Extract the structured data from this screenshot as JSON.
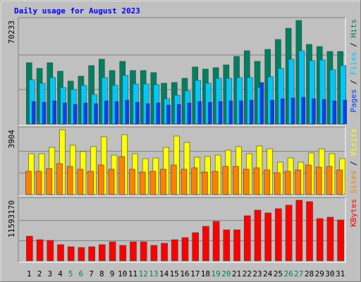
{
  "title": "Daily usage for August 2023",
  "chart_data": [
    {
      "type": "bar",
      "legend_separator": " / ",
      "ylim": [
        0,
        70233
      ],
      "yticks": [
        70233
      ],
      "series": [
        {
          "name": "Pages",
          "color": "#0040ff",
          "values": [
            15289,
            14811,
            15767,
            14333,
            13378,
            14333,
            13856,
            15767,
            15289,
            16244,
            14811,
            13856,
            14333,
            12900,
            13378,
            14333,
            15289,
            14811,
            15289,
            15767,
            15767,
            16244,
            28189,
            16244,
            17200,
            17678,
            18156,
            17200,
            16722,
            15767,
            16244
          ]
        },
        {
          "name": "Files",
          "color": "#00c8f8",
          "values": [
            30100,
            27711,
            31533,
            24844,
            23411,
            26278,
            20067,
            31533,
            26278,
            32967,
            27233,
            27233,
            26756,
            17200,
            19589,
            22456,
            29622,
            27711,
            31056,
            31056,
            31533,
            31533,
            24844,
            32011,
            37744,
            43956,
            49689,
            43000,
            43478,
            36789,
            39656
          ]
        },
        {
          "name": "Hits",
          "color": "#008060",
          "values": [
            41567,
            37744,
            41567,
            35833,
            29145,
            32489,
            39656,
            43956,
            36311,
            42522,
            36311,
            36311,
            34878,
            27711,
            28189,
            31056,
            38700,
            37267,
            38222,
            40133,
            45867,
            49689,
            42522,
            50644,
            57333,
            64978,
            70233,
            53989,
            52555,
            49211,
            49211
          ]
        }
      ]
    },
    {
      "type": "bar",
      "legend_separator": " / ",
      "ylim": [
        0,
        3904
      ],
      "yticks": [
        3904
      ],
      "series": [
        {
          "name": "Sites",
          "color": "#ff8000",
          "values": [
            1400,
            1400,
            1570,
            1867,
            1697,
            1528,
            1400,
            1782,
            1528,
            2291,
            1528,
            1358,
            1400,
            1528,
            1782,
            1528,
            1613,
            1358,
            1400,
            1697,
            1697,
            1528,
            1613,
            1485,
            1315,
            1400,
            1485,
            1782,
            1655,
            1697,
            1485
          ]
        },
        {
          "name": "Visits",
          "color": "#ffff00",
          "values": [
            2461,
            2461,
            2843,
            3904,
            2970,
            2589,
            2886,
            3480,
            2376,
            3607,
            2461,
            2164,
            2207,
            2843,
            3522,
            3140,
            2249,
            2291,
            2376,
            2673,
            2886,
            2461,
            2928,
            2758,
            1952,
            2207,
            1952,
            2504,
            2758,
            2461,
            2164
          ]
        }
      ]
    },
    {
      "type": "bar",
      "ylim": [
        0,
        11593170
      ],
      "yticks": [
        11593170
      ],
      "categories": [
        1,
        2,
        3,
        4,
        5,
        6,
        7,
        8,
        9,
        10,
        11,
        12,
        13,
        14,
        15,
        16,
        17,
        18,
        19,
        20,
        21,
        22,
        23,
        24,
        25,
        26,
        27,
        28,
        29,
        30,
        31
      ],
      "category_colors": [
        "#000000",
        "#000000",
        "#000000",
        "#000000",
        "#008060",
        "#008060",
        "#000000",
        "#000000",
        "#000000",
        "#000000",
        "#000000",
        "#008060",
        "#008060",
        "#000000",
        "#000000",
        "#000000",
        "#000000",
        "#000000",
        "#008060",
        "#008060",
        "#000000",
        "#000000",
        "#000000",
        "#000000",
        "#000000",
        "#008060",
        "#008060",
        "#000000",
        "#000000",
        "#000000",
        "#000000"
      ],
      "series": [
        {
          "name": "KBytes",
          "color": "#ff0000",
          "values": [
            4718140,
            4044120,
            3909320,
            3100490,
            2696090,
            2561280,
            2696090,
            3100490,
            3639720,
            2965690,
            3639720,
            3639720,
            2965690,
            3370110,
            4044120,
            4448540,
            5392170,
            6605410,
            7549040,
            5931390,
            5931390,
            8627470,
            9705910,
            9166690,
            9975520,
            10649540,
            11593170,
            11323560,
            8088260,
            8357870,
            7818650
          ]
        }
      ]
    }
  ]
}
